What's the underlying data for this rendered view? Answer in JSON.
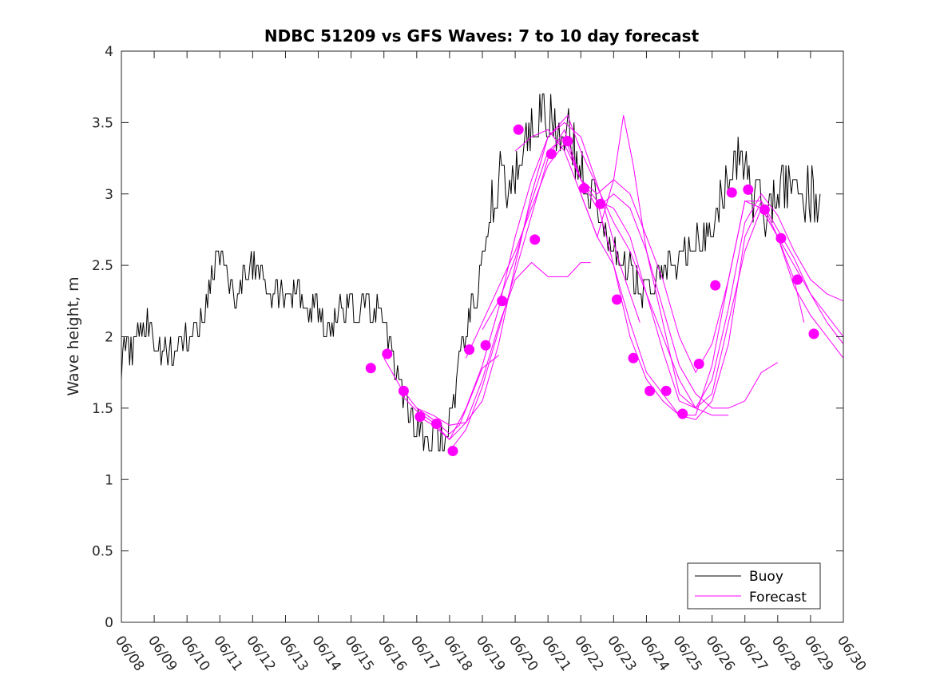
{
  "chart_data": {
    "type": "line",
    "title": "NDBC 51209 vs GFS Waves: 7 to 10 day forecast",
    "xlabel": "",
    "ylabel": "Wave height, m",
    "xlim": [
      8,
      30
    ],
    "ylim": [
      0,
      4
    ],
    "x_ticks": [
      {
        "x": 8,
        "label": "06/08"
      },
      {
        "x": 9,
        "label": "06/09"
      },
      {
        "x": 10,
        "label": "06/10"
      },
      {
        "x": 11,
        "label": "06/11"
      },
      {
        "x": 12,
        "label": "06/12"
      },
      {
        "x": 13,
        "label": "06/13"
      },
      {
        "x": 14,
        "label": "06/14"
      },
      {
        "x": 15,
        "label": "06/15"
      },
      {
        "x": 16,
        "label": "06/16"
      },
      {
        "x": 17,
        "label": "06/17"
      },
      {
        "x": 18,
        "label": "06/18"
      },
      {
        "x": 19,
        "label": "06/19"
      },
      {
        "x": 20,
        "label": "06/20"
      },
      {
        "x": 21,
        "label": "06/21"
      },
      {
        "x": 22,
        "label": "06/22"
      },
      {
        "x": 23,
        "label": "06/23"
      },
      {
        "x": 24,
        "label": "06/24"
      },
      {
        "x": 25,
        "label": "06/25"
      },
      {
        "x": 26,
        "label": "06/26"
      },
      {
        "x": 27,
        "label": "06/27"
      },
      {
        "x": 28,
        "label": "06/28"
      },
      {
        "x": 29,
        "label": "06/29"
      },
      {
        "x": 30,
        "label": "06/30"
      }
    ],
    "y_ticks": [
      {
        "y": 0,
        "label": "0"
      },
      {
        "y": 0.5,
        "label": "0.5"
      },
      {
        "y": 1,
        "label": "1"
      },
      {
        "y": 1.5,
        "label": "1.5"
      },
      {
        "y": 2,
        "label": "2"
      },
      {
        "y": 2.5,
        "label": "2.5"
      },
      {
        "y": 3,
        "label": "3"
      },
      {
        "y": 3.5,
        "label": "3.5"
      },
      {
        "y": 4,
        "label": "4"
      }
    ],
    "grid": false,
    "legend": {
      "placement": "bottom-right",
      "entries": [
        "Buoy",
        "Forecast"
      ]
    },
    "colors": {
      "buoy": "#000000",
      "forecast": "#ff00ff",
      "axes": "#262626"
    },
    "buoy_anchors": [
      [
        8.0,
        1.7
      ],
      [
        8.1,
        2.0
      ],
      [
        8.3,
        1.9
      ],
      [
        8.5,
        2.0
      ],
      [
        8.8,
        2.1
      ],
      [
        9.0,
        1.9
      ],
      [
        9.3,
        1.9
      ],
      [
        9.6,
        1.9
      ],
      [
        10.0,
        2.0
      ],
      [
        10.3,
        2.1
      ],
      [
        10.6,
        2.2
      ],
      [
        10.8,
        2.5
      ],
      [
        11.0,
        2.6
      ],
      [
        11.2,
        2.4
      ],
      [
        11.5,
        2.3
      ],
      [
        11.9,
        2.5
      ],
      [
        12.2,
        2.4
      ],
      [
        12.5,
        2.3
      ],
      [
        13.0,
        2.3
      ],
      [
        13.5,
        2.3
      ],
      [
        14.0,
        2.2
      ],
      [
        14.3,
        2.0
      ],
      [
        14.6,
        2.2
      ],
      [
        15.0,
        2.2
      ],
      [
        15.3,
        2.2
      ],
      [
        15.6,
        2.2
      ],
      [
        16.0,
        2.1
      ],
      [
        16.3,
        1.8
      ],
      [
        16.6,
        1.6
      ],
      [
        16.9,
        1.4
      ],
      [
        17.2,
        1.3
      ],
      [
        17.5,
        1.3
      ],
      [
        17.8,
        1.3
      ],
      [
        18.1,
        1.45
      ],
      [
        18.35,
        1.9
      ],
      [
        18.7,
        2.2
      ],
      [
        19.0,
        2.5
      ],
      [
        19.25,
        2.9
      ],
      [
        19.5,
        3.1
      ],
      [
        19.8,
        3.0
      ],
      [
        20.1,
        3.25
      ],
      [
        20.5,
        3.4
      ],
      [
        20.8,
        3.6
      ],
      [
        21.0,
        3.5
      ],
      [
        21.3,
        3.5
      ],
      [
        21.6,
        3.4
      ],
      [
        22.0,
        3.2
      ],
      [
        22.3,
        3.0
      ],
      [
        22.6,
        2.8
      ],
      [
        22.9,
        2.65
      ],
      [
        23.2,
        2.6
      ],
      [
        23.5,
        2.45
      ],
      [
        23.8,
        2.35
      ],
      [
        24.1,
        2.35
      ],
      [
        24.4,
        2.4
      ],
      [
        24.8,
        2.5
      ],
      [
        25.1,
        2.6
      ],
      [
        25.4,
        2.65
      ],
      [
        25.8,
        2.7
      ],
      [
        26.1,
        2.8
      ],
      [
        26.4,
        3.0
      ],
      [
        26.7,
        3.2
      ],
      [
        27.0,
        3.2
      ],
      [
        27.3,
        3.0
      ],
      [
        27.6,
        2.9
      ],
      [
        27.9,
        3.0
      ],
      [
        28.2,
        3.05
      ],
      [
        28.5,
        3.1
      ],
      [
        28.8,
        3.05
      ],
      [
        29.1,
        3.0
      ],
      [
        29.3,
        3.0
      ]
    ],
    "forecast_series": [
      {
        "x": [
          16.0,
          16.5,
          17.0,
          17.5,
          18.0,
          18.3,
          18.6,
          19.0,
          19.5
        ],
        "values": [
          1.85,
          1.65,
          1.5,
          1.42,
          1.32,
          1.38,
          1.55,
          1.78,
          1.87
        ]
      },
      {
        "x": [
          16.5,
          17.0,
          17.5,
          18.0,
          18.5,
          19.0,
          19.5,
          20.0,
          20.5,
          21.0,
          21.6,
          22.0,
          22.3
        ],
        "values": [
          1.6,
          1.48,
          1.4,
          1.28,
          1.4,
          1.7,
          2.08,
          2.4,
          2.52,
          2.42,
          2.42,
          2.52,
          2.52
        ]
      },
      {
        "x": [
          17.0,
          17.5,
          18.0,
          18.5,
          19.0,
          19.5,
          20.0,
          20.5,
          21.0,
          21.5,
          22.0,
          22.6,
          23.2,
          23.8
        ],
        "values": [
          1.45,
          1.38,
          1.28,
          1.5,
          1.8,
          2.2,
          2.7,
          3.1,
          3.4,
          3.5,
          3.4,
          3.0,
          2.5,
          2.1
        ]
      },
      {
        "x": [
          17.0,
          17.5,
          18.0,
          18.5,
          19.0,
          19.5,
          20.0,
          20.5,
          21.0,
          21.6,
          22.0,
          22.6,
          23.0,
          23.5,
          24.0,
          24.5,
          25.0,
          25.5,
          26.0,
          26.5
        ],
        "values": [
          1.5,
          1.45,
          1.38,
          1.4,
          1.55,
          1.95,
          2.5,
          3.0,
          3.4,
          3.55,
          3.3,
          3.0,
          2.8,
          2.6,
          2.3,
          2.0,
          1.7,
          1.5,
          1.45,
          1.45
        ]
      },
      {
        "x": [
          18.0,
          18.5,
          19.0,
          19.5,
          20.0,
          20.5,
          21.0,
          21.5,
          22.0,
          22.5,
          23.0,
          23.5,
          24.0,
          24.5,
          25.0,
          25.5,
          26.0,
          26.5,
          27.0,
          27.5,
          28.0
        ],
        "values": [
          1.2,
          1.35,
          1.65,
          2.05,
          2.45,
          2.85,
          3.25,
          3.45,
          3.1,
          2.9,
          3.0,
          2.9,
          2.6,
          2.2,
          1.8,
          1.6,
          1.5,
          1.5,
          1.55,
          1.75,
          1.82
        ]
      },
      {
        "x": [
          18.5,
          19.0,
          19.5,
          20.0,
          20.5,
          21.0,
          21.5,
          22.0,
          22.5,
          23.0,
          23.5,
          24.0,
          24.5,
          25.0,
          25.5,
          26.0,
          26.5,
          27.0,
          27.5,
          28.0,
          28.5,
          29.0,
          29.5,
          30.0
        ],
        "values": [
          1.85,
          2.1,
          2.35,
          2.6,
          2.9,
          3.2,
          3.35,
          3.1,
          2.95,
          2.9,
          2.7,
          2.3,
          1.9,
          1.55,
          1.5,
          1.6,
          2.1,
          2.6,
          2.9,
          2.7,
          2.5,
          2.3,
          2.15,
          2.0
        ]
      },
      {
        "x": [
          19.0,
          19.5,
          20.0,
          20.5,
          21.0,
          21.5,
          22.0,
          22.5,
          23.0,
          23.5,
          24.0,
          24.5,
          25.0,
          25.5,
          26.0,
          26.5,
          27.0,
          27.5,
          28.0,
          28.5,
          29.0,
          29.5,
          30.0
        ],
        "values": [
          2.05,
          2.25,
          2.55,
          2.95,
          3.3,
          3.4,
          3.1,
          3.0,
          3.1,
          3.0,
          2.7,
          2.4,
          2.0,
          1.75,
          1.95,
          2.4,
          2.95,
          2.95,
          2.75,
          2.55,
          2.3,
          2.1,
          1.95
        ]
      },
      {
        "x": [
          20.0,
          20.5,
          21.0,
          21.5,
          22.0,
          22.5,
          23.0,
          23.3,
          23.6,
          24.0,
          24.5,
          25.0,
          25.5,
          26.0,
          26.5,
          27.0,
          27.5,
          28.0,
          28.5,
          29.0,
          29.5,
          30.0
        ],
        "values": [
          3.3,
          3.4,
          3.45,
          3.3,
          3.0,
          2.7,
          3.1,
          3.55,
          3.2,
          2.6,
          2.1,
          1.6,
          1.5,
          1.7,
          2.2,
          2.8,
          3.0,
          2.85,
          2.6,
          2.4,
          2.3,
          2.25
        ]
      },
      {
        "x": [
          22.5,
          23.0,
          23.5,
          24.0,
          24.5,
          25.0,
          25.5,
          26.0,
          26.5,
          27.0,
          27.5,
          28.0,
          28.5,
          29.0,
          29.5,
          30.0
        ],
        "values": [
          2.95,
          2.5,
          2.0,
          1.7,
          1.55,
          1.45,
          1.45,
          1.8,
          2.4,
          2.95,
          2.9,
          2.7,
          2.35,
          2.15,
          2.0,
          1.85
        ]
      },
      {
        "x": [
          22.0,
          22.5,
          23.0,
          23.5,
          24.0,
          24.5,
          25.0,
          25.5,
          26.0,
          26.5,
          27.0,
          27.5,
          28.0,
          28.5,
          28.8
        ],
        "values": [
          3.0,
          2.7,
          2.5,
          2.1,
          1.75,
          1.6,
          1.45,
          1.42,
          1.55,
          1.95,
          2.7,
          2.95,
          2.7,
          2.4,
          2.1
        ]
      }
    ],
    "forecast_markers": [
      [
        15.6,
        1.78
      ],
      [
        16.1,
        1.88
      ],
      [
        16.6,
        1.62
      ],
      [
        17.1,
        1.44
      ],
      [
        17.6,
        1.39
      ],
      [
        18.1,
        1.2
      ],
      [
        18.6,
        1.91
      ],
      [
        19.1,
        1.94
      ],
      [
        19.6,
        2.25
      ],
      [
        20.1,
        3.45
      ],
      [
        20.6,
        2.68
      ],
      [
        21.1,
        3.28
      ],
      [
        21.6,
        3.37
      ],
      [
        22.1,
        3.04
      ],
      [
        22.6,
        2.93
      ],
      [
        23.1,
        2.26
      ],
      [
        23.6,
        1.85
      ],
      [
        24.1,
        1.62
      ],
      [
        24.6,
        1.62
      ],
      [
        25.1,
        1.46
      ],
      [
        25.6,
        1.81
      ],
      [
        26.1,
        2.36
      ],
      [
        26.6,
        3.01
      ],
      [
        27.1,
        3.03
      ],
      [
        27.6,
        2.89
      ],
      [
        28.1,
        2.69
      ],
      [
        28.6,
        2.4
      ],
      [
        29.1,
        2.02
      ]
    ]
  }
}
